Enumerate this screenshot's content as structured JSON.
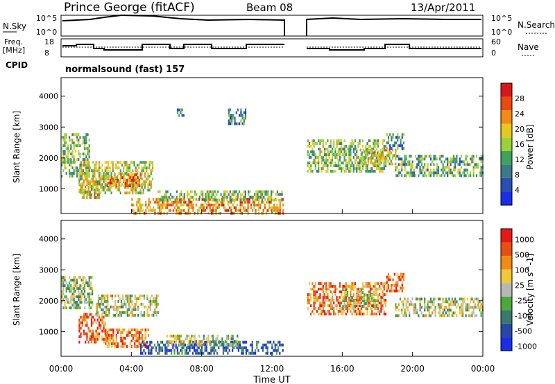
{
  "header": {
    "station": "Prince George (fitACF)",
    "beam": "Beam 08",
    "date": "13/Apr/2011"
  },
  "noise_panel": {
    "left_label": "N.Sky",
    "left_ticks": [
      "10^5",
      "10^0"
    ],
    "right_label": "N.Search",
    "right_ticks": [
      "10^5",
      "10^0"
    ]
  },
  "freq_panel": {
    "left_label_line1": "Freq.",
    "left_label_line2": "[MHz]",
    "left_ticks": [
      "18",
      "8"
    ],
    "right_label": "Nave",
    "right_ticks": [
      "60",
      "0"
    ]
  },
  "cpid": {
    "label": "CPID",
    "text": "normalsound (fast) 157"
  },
  "colors": {
    "power": [
      "#1a2ee8",
      "#2a4fb0",
      "#3a7a8a",
      "#3fa45a",
      "#9ad23a",
      "#e8c81e",
      "#f08c14",
      "#e84a10",
      "#d81818"
    ],
    "velocity": [
      "#1a2ee8",
      "#2848a8",
      "#3a7a6a",
      "#4caa3a",
      "#b8b8b8",
      "#f0c838",
      "#f08c14",
      "#e85010",
      "#e81818"
    ]
  },
  "chart_data": [
    {
      "type": "heatmap",
      "name": "power",
      "xlabel": "",
      "ylabel": "Slant Range [km]",
      "xlim": [
        0,
        24
      ],
      "ylim": [
        200,
        4600
      ],
      "y_ticks": [
        1000,
        2000,
        3000,
        4000
      ],
      "colorbar": {
        "label": "Power [dB]",
        "range": [
          0,
          32
        ],
        "tick_labels": [
          "4",
          "8",
          "12",
          "16",
          "20",
          "24",
          "28"
        ]
      },
      "data_gap_hours": [
        12.8,
        14.0
      ],
      "regions": [
        {
          "t": [
            0.0,
            1.6
          ],
          "r": [
            1400,
            2800
          ],
          "level": 0.45
        },
        {
          "t": [
            1.0,
            5.2
          ],
          "r": [
            900,
            1900
          ],
          "level": 0.55
        },
        {
          "t": [
            2.5,
            4.5
          ],
          "r": [
            1100,
            1500
          ],
          "level": 0.75
        },
        {
          "t": [
            1.0,
            2.2
          ],
          "r": [
            700,
            1300
          ],
          "level": 0.6
        },
        {
          "t": [
            4.0,
            12.6
          ],
          "r": [
            250,
            700
          ],
          "level": 0.7
        },
        {
          "t": [
            5.5,
            12.6
          ],
          "r": [
            600,
            950
          ],
          "level": 0.45
        },
        {
          "t": [
            6.5,
            7.0
          ],
          "r": [
            3400,
            3600
          ],
          "level": 0.3
        },
        {
          "t": [
            9.5,
            10.5
          ],
          "r": [
            3100,
            3600
          ],
          "level": 0.3
        },
        {
          "t": [
            14.0,
            18.5
          ],
          "r": [
            1600,
            2600
          ],
          "level": 0.45
        },
        {
          "t": [
            17.0,
            19.0
          ],
          "r": [
            1800,
            2300
          ],
          "level": 0.6
        },
        {
          "t": [
            18.5,
            19.5
          ],
          "r": [
            2300,
            2800
          ],
          "level": 0.3
        },
        {
          "t": [
            19.0,
            24.0
          ],
          "r": [
            1400,
            2100
          ],
          "level": 0.4
        }
      ]
    },
    {
      "type": "heatmap",
      "name": "velocity",
      "xlabel": "Time UT",
      "ylabel": "Slant Range [km]",
      "xlim": [
        0,
        24
      ],
      "ylim": [
        200,
        4600
      ],
      "y_ticks": [
        1000,
        2000,
        3000,
        4000
      ],
      "x_ticks": [
        "00:00",
        "04:00",
        "08:00",
        "12:00",
        "16:00",
        "20:00",
        "00:00"
      ],
      "colorbar": {
        "label": "Velocity [m s^-1]",
        "tick_labels": [
          "1000",
          "500",
          "100",
          "25",
          "-25",
          "-100",
          "-500",
          "-1000"
        ]
      },
      "data_gap_hours": [
        12.8,
        14.0
      ],
      "regions": [
        {
          "t": [
            0.0,
            1.8
          ],
          "r": [
            1800,
            2800
          ],
          "level": 0.45
        },
        {
          "t": [
            1.0,
            2.5
          ],
          "r": [
            700,
            1600
          ],
          "level": 0.85
        },
        {
          "t": [
            2.0,
            5.5
          ],
          "r": [
            1500,
            2200
          ],
          "level": 0.5
        },
        {
          "t": [
            2.5,
            5.0
          ],
          "r": [
            500,
            1100
          ],
          "level": 0.8
        },
        {
          "t": [
            4.5,
            12.6
          ],
          "r": [
            300,
            700
          ],
          "level": 0.2
        },
        {
          "t": [
            6.0,
            10.0
          ],
          "r": [
            600,
            900
          ],
          "level": 0.5
        },
        {
          "t": [
            14.0,
            18.5
          ],
          "r": [
            1600,
            2600
          ],
          "level": 0.75
        },
        {
          "t": [
            16.0,
            18.0
          ],
          "r": [
            1800,
            2400
          ],
          "level": 0.5
        },
        {
          "t": [
            18.5,
            19.5
          ],
          "r": [
            2300,
            2900
          ],
          "level": 0.8
        },
        {
          "t": [
            19.0,
            24.0
          ],
          "r": [
            1500,
            2100
          ],
          "level": 0.5
        }
      ]
    }
  ]
}
